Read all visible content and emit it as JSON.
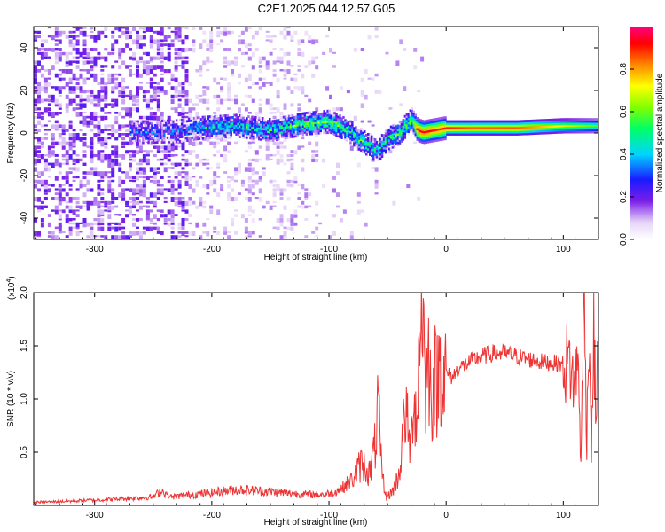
{
  "title": "C2E1.2025.044.12.57.G05",
  "colorbar": {
    "label": "Normalized spectral amplitude",
    "ticks": [
      "0.0",
      "0.2",
      "0.4",
      "0.6",
      "0.8"
    ],
    "range": [
      0,
      1
    ]
  },
  "chart_data": [
    {
      "type": "heatmap",
      "title": "",
      "xlabel": "Height of straight line (km)",
      "ylabel": "Frequency (Hz)",
      "xlim": [
        -352,
        130
      ],
      "ylim": [
        -50,
        50
      ],
      "xticks": [
        "-300",
        "-200",
        "-100",
        "0",
        "100"
      ],
      "yticks": [
        "-40",
        "-20",
        "0",
        "20",
        "40"
      ],
      "ridge": {
        "x": [
          -260,
          -230,
          -210,
          -180,
          -150,
          -120,
          -100,
          -85,
          -75,
          -65,
          -58,
          -50,
          -42,
          -35,
          -30,
          -25,
          -20,
          -10,
          0,
          20,
          60,
          100,
          130
        ],
        "y": [
          0,
          0.5,
          2,
          3,
          1,
          4,
          5,
          1,
          -3,
          -7,
          -8,
          -3,
          -1,
          3,
          6,
          1,
          0,
          1,
          2,
          2,
          2,
          3,
          3
        ],
        "amplitude": [
          0.25,
          0.25,
          0.35,
          0.45,
          0.45,
          0.55,
          0.55,
          0.5,
          0.5,
          0.45,
          0.4,
          0.45,
          0.5,
          0.55,
          0.5,
          0.95,
          0.95,
          0.9,
          0.9,
          0.85,
          0.85,
          0.7,
          0.55
        ]
      }
    },
    {
      "type": "line",
      "title": "",
      "xlabel": "Height of straight line (km)",
      "ylabel": "SNR (10 * v/v)",
      "scale_label": "(x10",
      "scale_exp": "4",
      "scale_close": ")",
      "xlim": [
        -352,
        130
      ],
      "ylim": [
        0,
        20000
      ],
      "xticks": [
        "-300",
        "-200",
        "-100",
        "0",
        "100"
      ],
      "yticks": [
        "0.5",
        "1.0",
        "1.5",
        "2.0"
      ],
      "series": [
        {
          "color": "#ee3333",
          "x": [
            -352,
            -320,
            -280,
            -250,
            -243,
            -235,
            -200,
            -180,
            -150,
            -130,
            -110,
            -100,
            -90,
            -80,
            -72,
            -65,
            -60,
            -58,
            -56,
            -54,
            -52,
            -50,
            -45,
            -40,
            -35,
            -30,
            -28,
            -25,
            -22,
            -20,
            -18,
            -15,
            -12,
            -10,
            -8,
            -5,
            -3,
            0,
            5,
            10,
            20,
            30,
            40,
            50,
            60,
            80,
            100,
            105,
            110,
            112,
            115,
            118,
            120,
            122,
            124,
            126,
            128,
            130
          ],
          "y": [
            300,
            400,
            600,
            800,
            1400,
            800,
            1200,
            1500,
            1300,
            1100,
            1000,
            1100,
            1500,
            2500,
            4000,
            3000,
            6000,
            10000,
            4500,
            2500,
            1000,
            800,
            1500,
            3000,
            9000,
            5000,
            11000,
            8000,
            17500,
            20000,
            11000,
            13500,
            10000,
            12500,
            11000,
            14000,
            11500,
            12500,
            12000,
            12800,
            13500,
            14000,
            14300,
            14300,
            14000,
            13500,
            13300,
            13500,
            11000,
            15000,
            4500,
            19800,
            6000,
            17500,
            5000,
            16000,
            8000,
            18000
          ]
        }
      ]
    }
  ]
}
